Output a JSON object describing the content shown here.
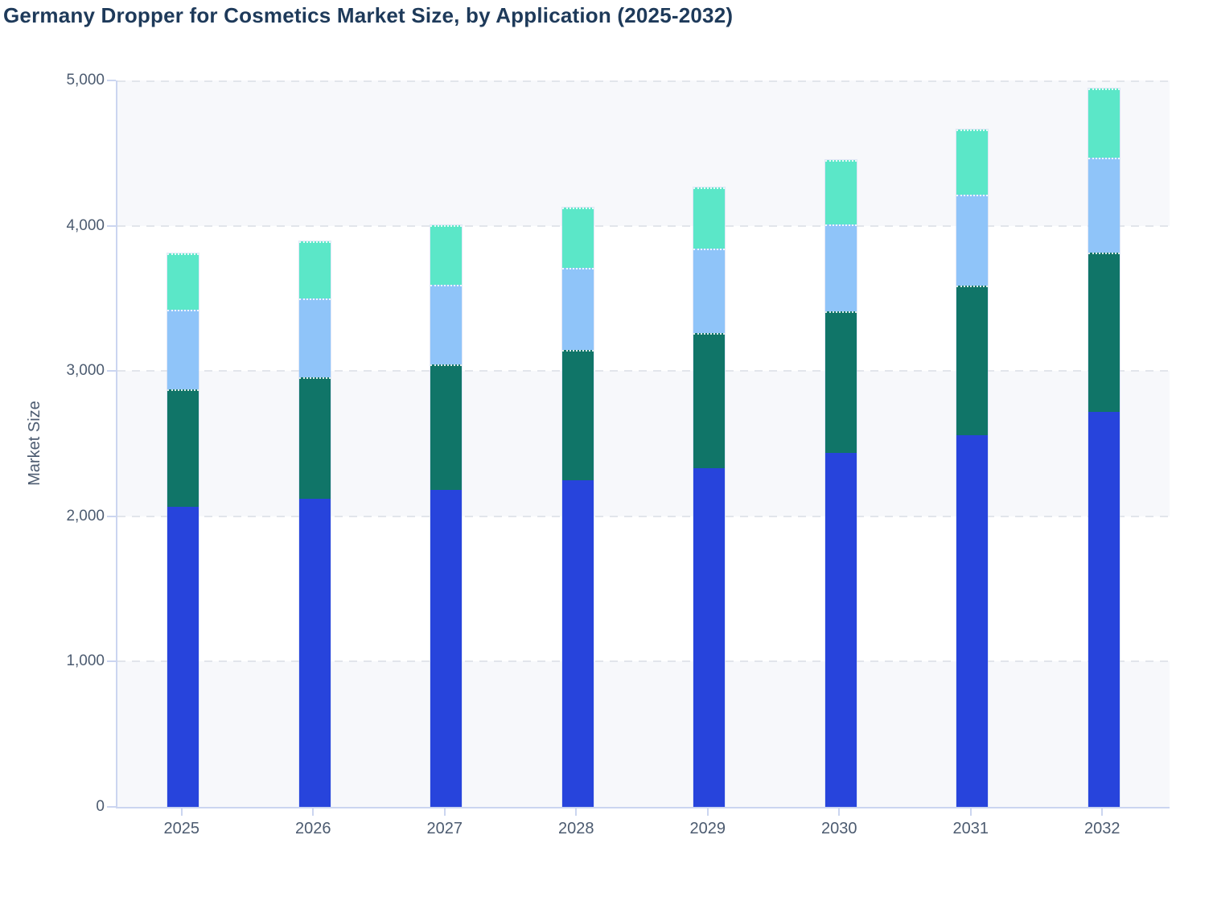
{
  "title": "Germany Dropper for Cosmetics Market Size, by Application (2025-2032)",
  "chart_data": {
    "type": "bar",
    "stacked": true,
    "title": "Germany Dropper for Cosmetics Market Size, by Application (2025-2032)",
    "categories": [
      "2025",
      "2026",
      "2027",
      "2028",
      "2029",
      "2030",
      "2031",
      "2032"
    ],
    "series": [
      {
        "name": "royal-blue-segment",
        "color": "#2744DC",
        "values": [
          2065,
          2120,
          2180,
          2250,
          2330,
          2435,
          2560,
          2720
        ]
      },
      {
        "name": "teal-segment",
        "color": "#107568",
        "values": [
          810,
          835,
          865,
          895,
          930,
          975,
          1030,
          1095
        ]
      },
      {
        "name": "light-blue-segment",
        "color": "#8FC4F9",
        "values": [
          545,
          545,
          550,
          565,
          585,
          600,
          625,
          655
        ]
      },
      {
        "name": "mint-segment",
        "color": "#5BE7C8",
        "values": [
          390,
          395,
          410,
          415,
          420,
          440,
          450,
          475
        ]
      }
    ],
    "totals": [
      3810,
      3895,
      4005,
      4125,
      4265,
      4450,
      4665,
      4945
    ],
    "xlabel": "",
    "ylabel": "Market Size",
    "ylim": [
      0,
      5000
    ],
    "y_tick_values": [
      0,
      1000,
      2000,
      3000,
      4000,
      5000
    ],
    "y_tick_labels": [
      "0",
      "1,000",
      "2,000",
      "3,000",
      "4,000",
      "5,000"
    ],
    "grid": "horizontal-dashed",
    "row_banding": "alternate bands filled light starting at 0-1000",
    "legend": "none"
  },
  "colors": {
    "title_text": "#1E3A5A",
    "axis_text": "#4C5B70",
    "axis_line": "#CBD5F0",
    "gridline": "#E2E5EB",
    "band_fill": "#F7F8FB",
    "background": "#FFFFFF"
  }
}
